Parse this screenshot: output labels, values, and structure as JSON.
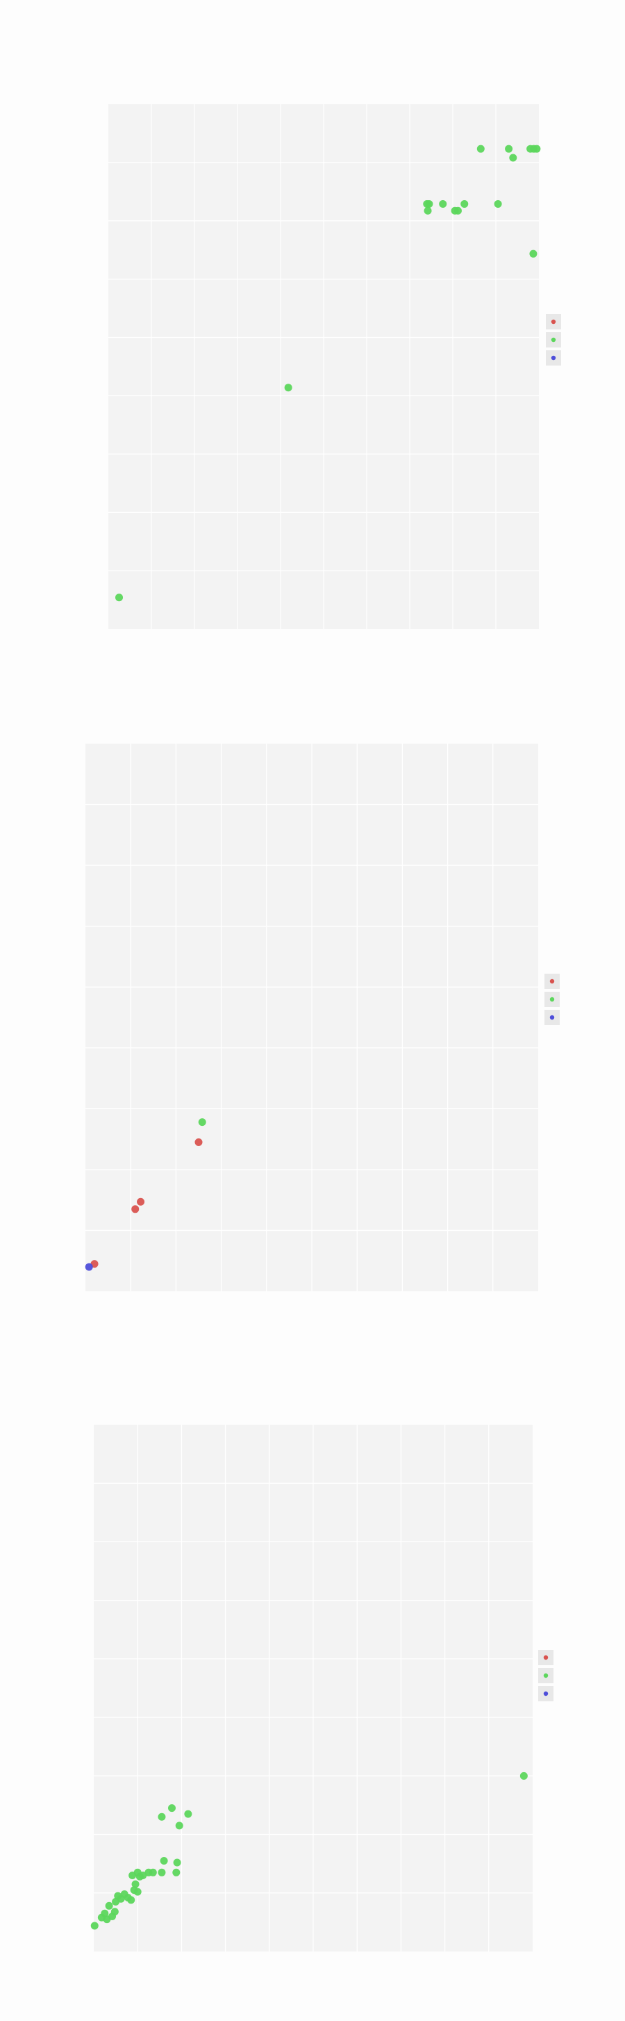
{
  "chart_data": [
    {
      "type": "scatter",
      "xlim": [
        0,
        10
      ],
      "ylim": [
        0,
        10
      ],
      "grid": true,
      "legend_placement": "right",
      "legend_markers": [
        "#d9534f",
        "#5cd65c",
        "#4e4ed9"
      ],
      "series": [
        {
          "color": "#5cd65c",
          "points": [
            [
              0.25,
              0.6
            ],
            [
              4.18,
              4.6
            ],
            [
              7.4,
              8.1
            ],
            [
              7.45,
              8.1
            ],
            [
              7.42,
              7.97
            ],
            [
              7.77,
              8.1
            ],
            [
              8.05,
              7.97
            ],
            [
              8.12,
              7.97
            ],
            [
              8.27,
              8.1
            ],
            [
              9.05,
              8.1
            ],
            [
              8.65,
              9.15
            ],
            [
              9.3,
              9.15
            ],
            [
              9.4,
              8.98
            ],
            [
              9.8,
              9.15
            ],
            [
              9.88,
              9.15
            ],
            [
              9.95,
              9.15
            ],
            [
              9.87,
              7.15
            ]
          ]
        }
      ]
    },
    {
      "type": "scatter",
      "xlim": [
        0,
        10
      ],
      "ylim": [
        0,
        9
      ],
      "grid": true,
      "legend_placement": "right",
      "legend_markers": [
        "#d9534f",
        "#5cd65c",
        "#4e4ed9"
      ],
      "series": [
        {
          "color": "#d9534f",
          "points": [
            [
              0.2,
              0.45
            ],
            [
              1.1,
              1.35
            ],
            [
              1.22,
              1.47
            ],
            [
              2.5,
              2.45
            ]
          ]
        },
        {
          "color": "#5cd65c",
          "points": [
            [
              2.58,
              2.78
            ]
          ]
        },
        {
          "color": "#4e4ed9",
          "points": [
            [
              0.08,
              0.4
            ]
          ]
        }
      ]
    },
    {
      "type": "scatter",
      "xlim": [
        0,
        10
      ],
      "ylim": [
        0,
        9
      ],
      "grid": true,
      "legend_placement": "right",
      "legend_markers": [
        "#d9534f",
        "#5cd65c",
        "#4e4ed9"
      ],
      "series": [
        {
          "color": "#5cd65c",
          "points": [
            [
              0.02,
              0.44
            ],
            [
              0.18,
              0.58
            ],
            [
              0.25,
              0.65
            ],
            [
              0.3,
              0.55
            ],
            [
              0.42,
              0.6
            ],
            [
              0.48,
              0.68
            ],
            [
              0.35,
              0.78
            ],
            [
              0.5,
              0.85
            ],
            [
              0.55,
              0.95
            ],
            [
              0.62,
              0.9
            ],
            [
              0.7,
              0.98
            ],
            [
              0.78,
              0.92
            ],
            [
              0.85,
              0.88
            ],
            [
              0.92,
              1.05
            ],
            [
              1.0,
              1.02
            ],
            [
              0.95,
              1.15
            ],
            [
              0.88,
              1.3
            ],
            [
              1.0,
              1.35
            ],
            [
              1.05,
              1.28
            ],
            [
              1.12,
              1.3
            ],
            [
              1.25,
              1.35
            ],
            [
              1.35,
              1.35
            ],
            [
              1.55,
              1.35
            ],
            [
              1.6,
              1.55
            ],
            [
              1.88,
              1.35
            ],
            [
              1.9,
              1.52
            ],
            [
              1.95,
              2.15
            ],
            [
              1.55,
              2.3
            ],
            [
              1.78,
              2.45
            ],
            [
              2.15,
              2.35
            ],
            [
              9.8,
              3.0
            ]
          ]
        }
      ]
    }
  ]
}
